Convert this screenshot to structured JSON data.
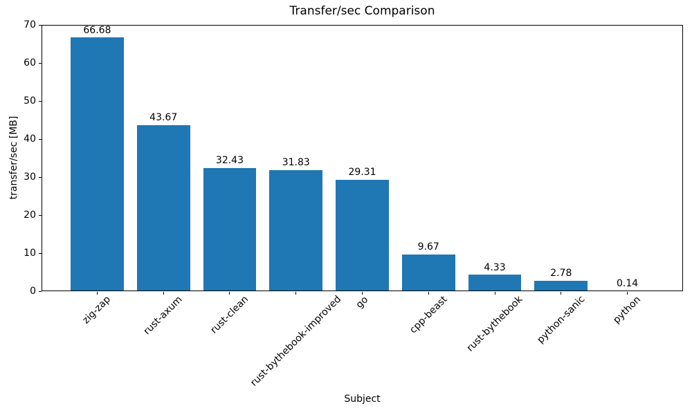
{
  "chart_data": {
    "type": "bar",
    "title": "Transfer/sec Comparison",
    "xlabel": "Subject",
    "ylabel": "transfer/sec [MB]",
    "categories": [
      "zig-zap",
      "rust-axum",
      "rust-clean",
      "rust-bythebook-improved",
      "go",
      "cpp-beast",
      "rust-bythebook",
      "python-sanic",
      "python"
    ],
    "values": [
      66.68,
      43.67,
      32.43,
      31.83,
      29.31,
      9.67,
      4.33,
      2.78,
      0.14
    ],
    "value_labels": [
      "66.68",
      "43.67",
      "32.43",
      "31.83",
      "29.31",
      "9.67",
      "4.33",
      "2.78",
      "0.14"
    ],
    "ylim": [
      0,
      70
    ],
    "yticks": [
      0,
      10,
      20,
      30,
      40,
      50,
      60,
      70
    ],
    "bar_color": "#1f77b4",
    "bar_width_fraction": 0.8,
    "x_tick_rotation_deg": 45,
    "grid": false,
    "legend": "none"
  }
}
